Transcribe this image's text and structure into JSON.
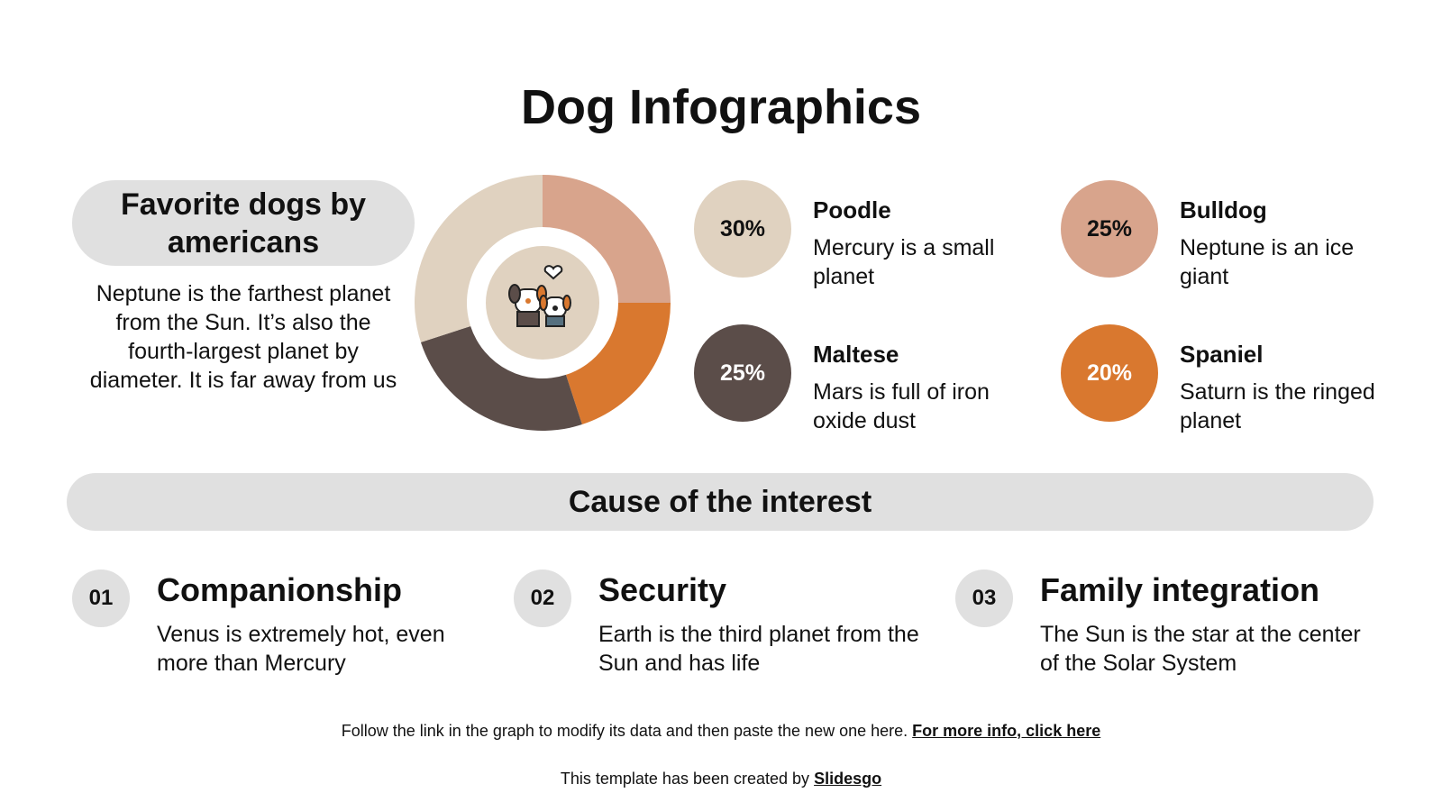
{
  "title": "Dog Infographics",
  "favorites": {
    "heading": "Favorite dogs by americans",
    "text": "Neptune is the farthest planet from the Sun. It’s also the fourth-largest planet by diameter. It is far away from us"
  },
  "center_icon": "two-dogs-heart-icon",
  "breeds": [
    {
      "percent": "30%",
      "name": "Poodle",
      "desc": "Mercury is a small planet",
      "color": "#E0D2C0",
      "text_color": "#111111"
    },
    {
      "percent": "25%",
      "name": "Bulldog",
      "desc": "Neptune is an ice giant",
      "color": "#D8A48C",
      "text_color": "#111111"
    },
    {
      "percent": "25%",
      "name": "Maltese",
      "desc": "Mars is full of iron oxide dust",
      "color": "#5B4D49",
      "text_color": "#FFFFFF"
    },
    {
      "percent": "20%",
      "name": "Spaniel",
      "desc": "Saturn is the ringed planet",
      "color": "#D9782F",
      "text_color": "#FFFFFF"
    }
  ],
  "chart_data": {
    "type": "pie",
    "donut": true,
    "categories": [
      "Bulldog",
      "Spaniel",
      "Maltese",
      "Poodle"
    ],
    "values": [
      25,
      20,
      25,
      30
    ],
    "colors": [
      "#D8A48C",
      "#D9782F",
      "#5B4D49",
      "#E0D2C0"
    ]
  },
  "cause": {
    "heading": "Cause of the interest",
    "items": [
      {
        "num": "01",
        "title": "Companionship",
        "desc": "Venus is extremely hot, even more than Mercury"
      },
      {
        "num": "02",
        "title": "Security",
        "desc": "Earth is the third planet from the Sun and has life"
      },
      {
        "num": "03",
        "title": "Family integration",
        "desc": "The Sun is the star at the center of the Solar System"
      }
    ]
  },
  "footer": {
    "note": "Follow the link in the graph to modify its data and then paste the new one here.",
    "link": "For more info, click here",
    "credit": "This template has been created by",
    "brand": "Slidesgo"
  }
}
